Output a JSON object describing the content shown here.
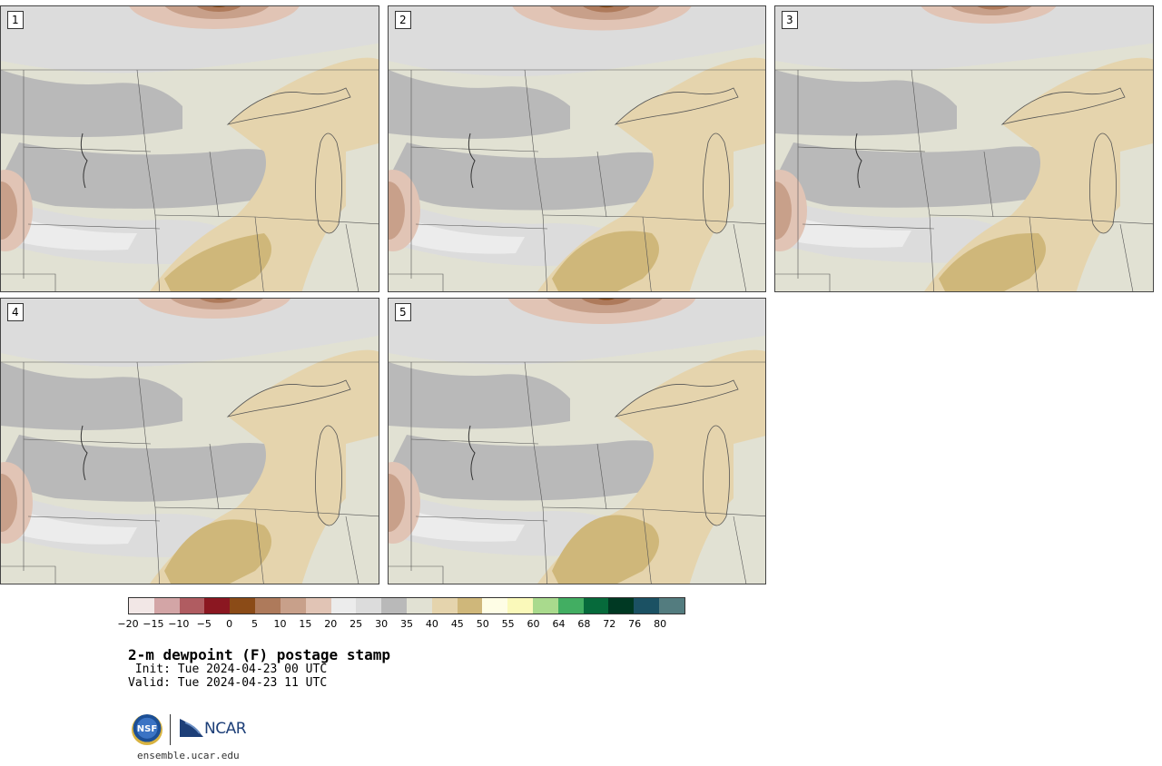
{
  "product": {
    "title": "2-m dewpoint (F) postage stamp",
    "init_line": " Init: Tue 2024-04-23 00 UTC",
    "valid_line": "Valid: Tue 2024-04-23 11 UTC"
  },
  "panels": [
    {
      "label": "1",
      "member": 1
    },
    {
      "label": "2",
      "member": 2
    },
    {
      "label": "3",
      "member": 3
    },
    {
      "label": "4",
      "member": 4
    },
    {
      "label": "5",
      "member": 5
    }
  ],
  "colorbar": {
    "units": "F",
    "colors": [
      "#f2e7e6",
      "#d3a5a6",
      "#b05c61",
      "#8b1721",
      "#8b4b17",
      "#ae7a5b",
      "#c8a08a",
      "#e1c4b5",
      "#ececec",
      "#dcdcdc",
      "#b9b9b9",
      "#e1e1d3",
      "#e5d4ad",
      "#cfb77a",
      "#fefde5",
      "#faf9ba",
      "#a9da8d",
      "#42ae62",
      "#066a3b",
      "#003923",
      "#1b5163",
      "#537c7f"
    ],
    "tick_labels": [
      "−20",
      "−15",
      "−10",
      "−5",
      "0",
      "5",
      "10",
      "15",
      "20",
      "25",
      "30",
      "35",
      "40",
      "45",
      "50",
      "55",
      "60",
      "64",
      "68",
      "72",
      "76",
      "80"
    ]
  },
  "logos": {
    "nsf": "NSF",
    "ncar": "NCAR"
  },
  "website": "ensemble.ucar.edu"
}
